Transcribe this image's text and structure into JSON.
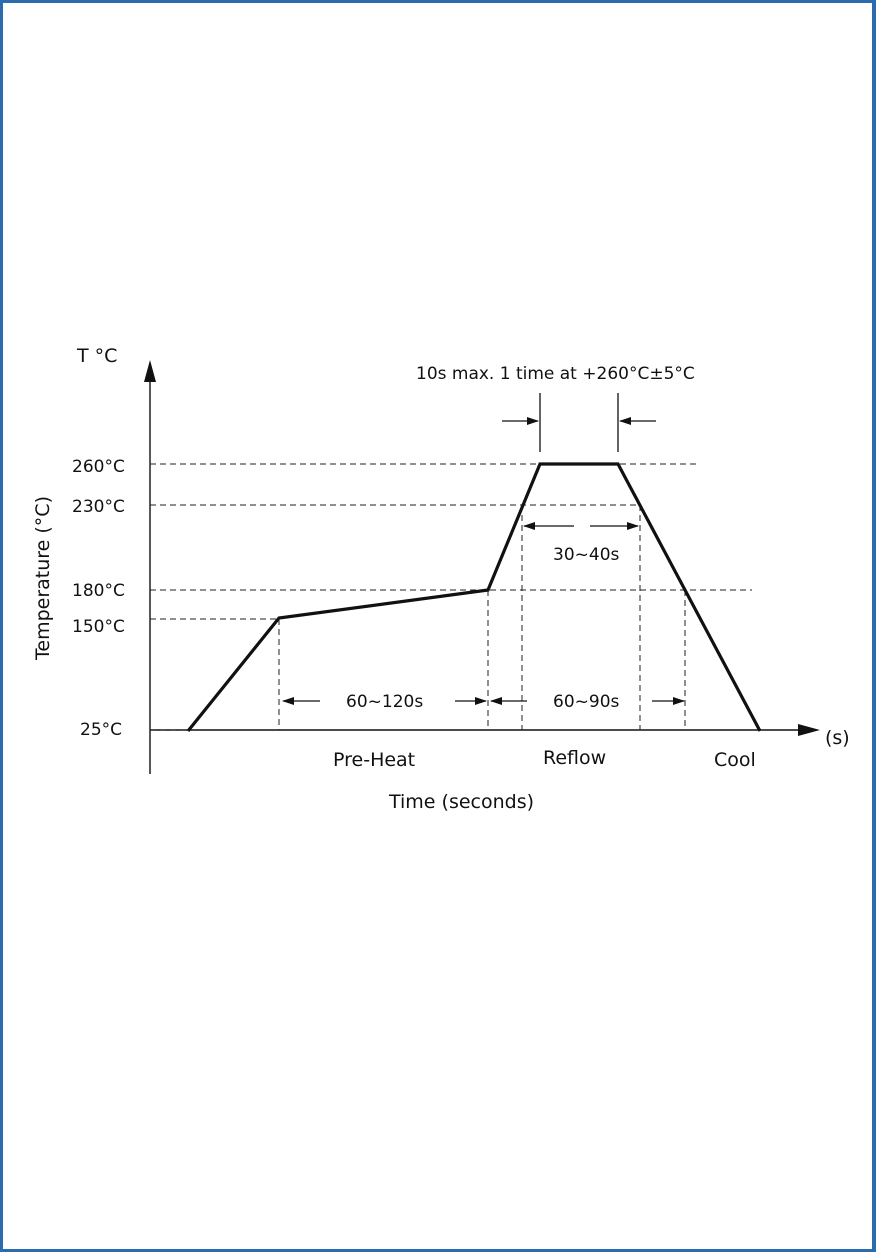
{
  "diagram": {
    "y_axis_unit": "T °C",
    "y_axis_label": "Temperature (°C)",
    "x_axis_label": "Time (seconds)",
    "x_axis_unit": "(s)",
    "peak_note": "10s max. 1 time at +260°C±5°C",
    "temps": {
      "t260": "260°C",
      "t230": "230°C",
      "t180": "180°C",
      "t150": "150°C",
      "t25": "25°C"
    },
    "intervals": {
      "preheat_duration": "60~120s",
      "above230_duration": "30~40s",
      "above180_duration": "60~90s"
    },
    "phases": {
      "preheat": "Pre-Heat",
      "reflow": "Reflow",
      "cool": "Cool"
    }
  },
  "colors": {
    "frame": "#2b6cb0",
    "ink": "#111111"
  }
}
